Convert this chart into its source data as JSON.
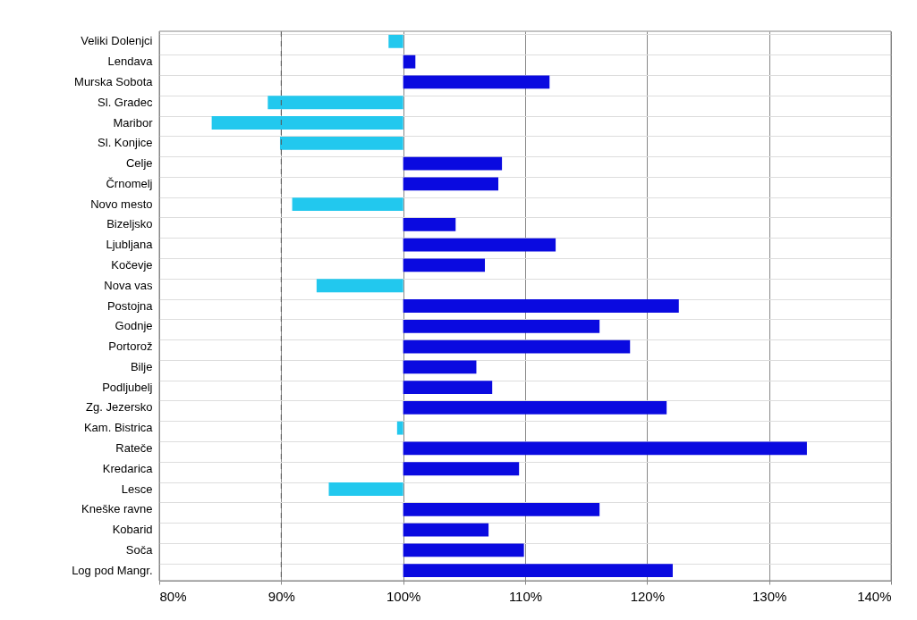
{
  "chart_data": {
    "type": "bar",
    "orientation": "horizontal",
    "categories": [
      "Veliki Dolenjci",
      "Lendava",
      "Murska Sobota",
      "Sl. Gradec",
      "Maribor",
      "Sl. Konjice",
      "Celje",
      "Črnomelj",
      "Novo mesto",
      "Bizeljsko",
      "Ljubljana",
      "Kočevje",
      "Nova vas",
      "Postojna",
      "Godnje",
      "Portorož",
      "Bilje",
      "Podljubelj",
      "Zg. Jezersko",
      "Kam. Bistrica",
      "Rateče",
      "Kredarica",
      "Lesce",
      "Kneške ravne",
      "Kobarid",
      "Soča",
      "Log pod Mangr."
    ],
    "base": [
      100,
      100,
      100,
      100,
      100,
      100,
      100,
      100,
      100,
      100,
      100,
      100,
      100,
      100,
      100,
      100,
      100,
      100,
      100,
      100,
      100,
      100,
      100,
      100,
      100,
      100,
      100
    ],
    "values": [
      -1.2,
      1.0,
      12.0,
      -11.1,
      -15.7,
      -10.1,
      8.1,
      7.8,
      -9.1,
      4.3,
      12.5,
      6.7,
      -7.1,
      22.6,
      16.1,
      18.6,
      6.0,
      7.3,
      21.6,
      -0.5,
      33.1,
      9.5,
      -6.1,
      16.1,
      7.0,
      9.9,
      22.1
    ],
    "colors": [
      "#22c8ee",
      "#0a0ae0",
      "#0a0ae0",
      "#22c8ee",
      "#22c8ee",
      "#22c8ee",
      "#0a0ae0",
      "#0a0ae0",
      "#22c8ee",
      "#0a0ae0",
      "#0a0ae0",
      "#0a0ae0",
      "#22c8ee",
      "#0a0ae0",
      "#0a0ae0",
      "#0a0ae0",
      "#0a0ae0",
      "#0a0ae0",
      "#0a0ae0",
      "#22c8ee",
      "#0a0ae0",
      "#0a0ae0",
      "#22c8ee",
      "#0a0ae0",
      "#0a0ae0",
      "#0a0ae0",
      "#0a0ae0"
    ],
    "xlim": [
      80,
      140
    ],
    "xticks": [
      {
        "value": 80,
        "label": "80%"
      },
      {
        "value": 90,
        "label": "90%"
      },
      {
        "value": 100,
        "label": "100%"
      },
      {
        "value": 110,
        "label": "110%"
      },
      {
        "value": 120,
        "label": "120%"
      },
      {
        "value": 130,
        "label": "130%"
      },
      {
        "value": 140,
        "label": "140%"
      }
    ],
    "ref_lines": [
      {
        "axis": "x",
        "value": 90,
        "label": null,
        "color": "#555555",
        "line_style": "dashed"
      }
    ],
    "grid": true
  }
}
